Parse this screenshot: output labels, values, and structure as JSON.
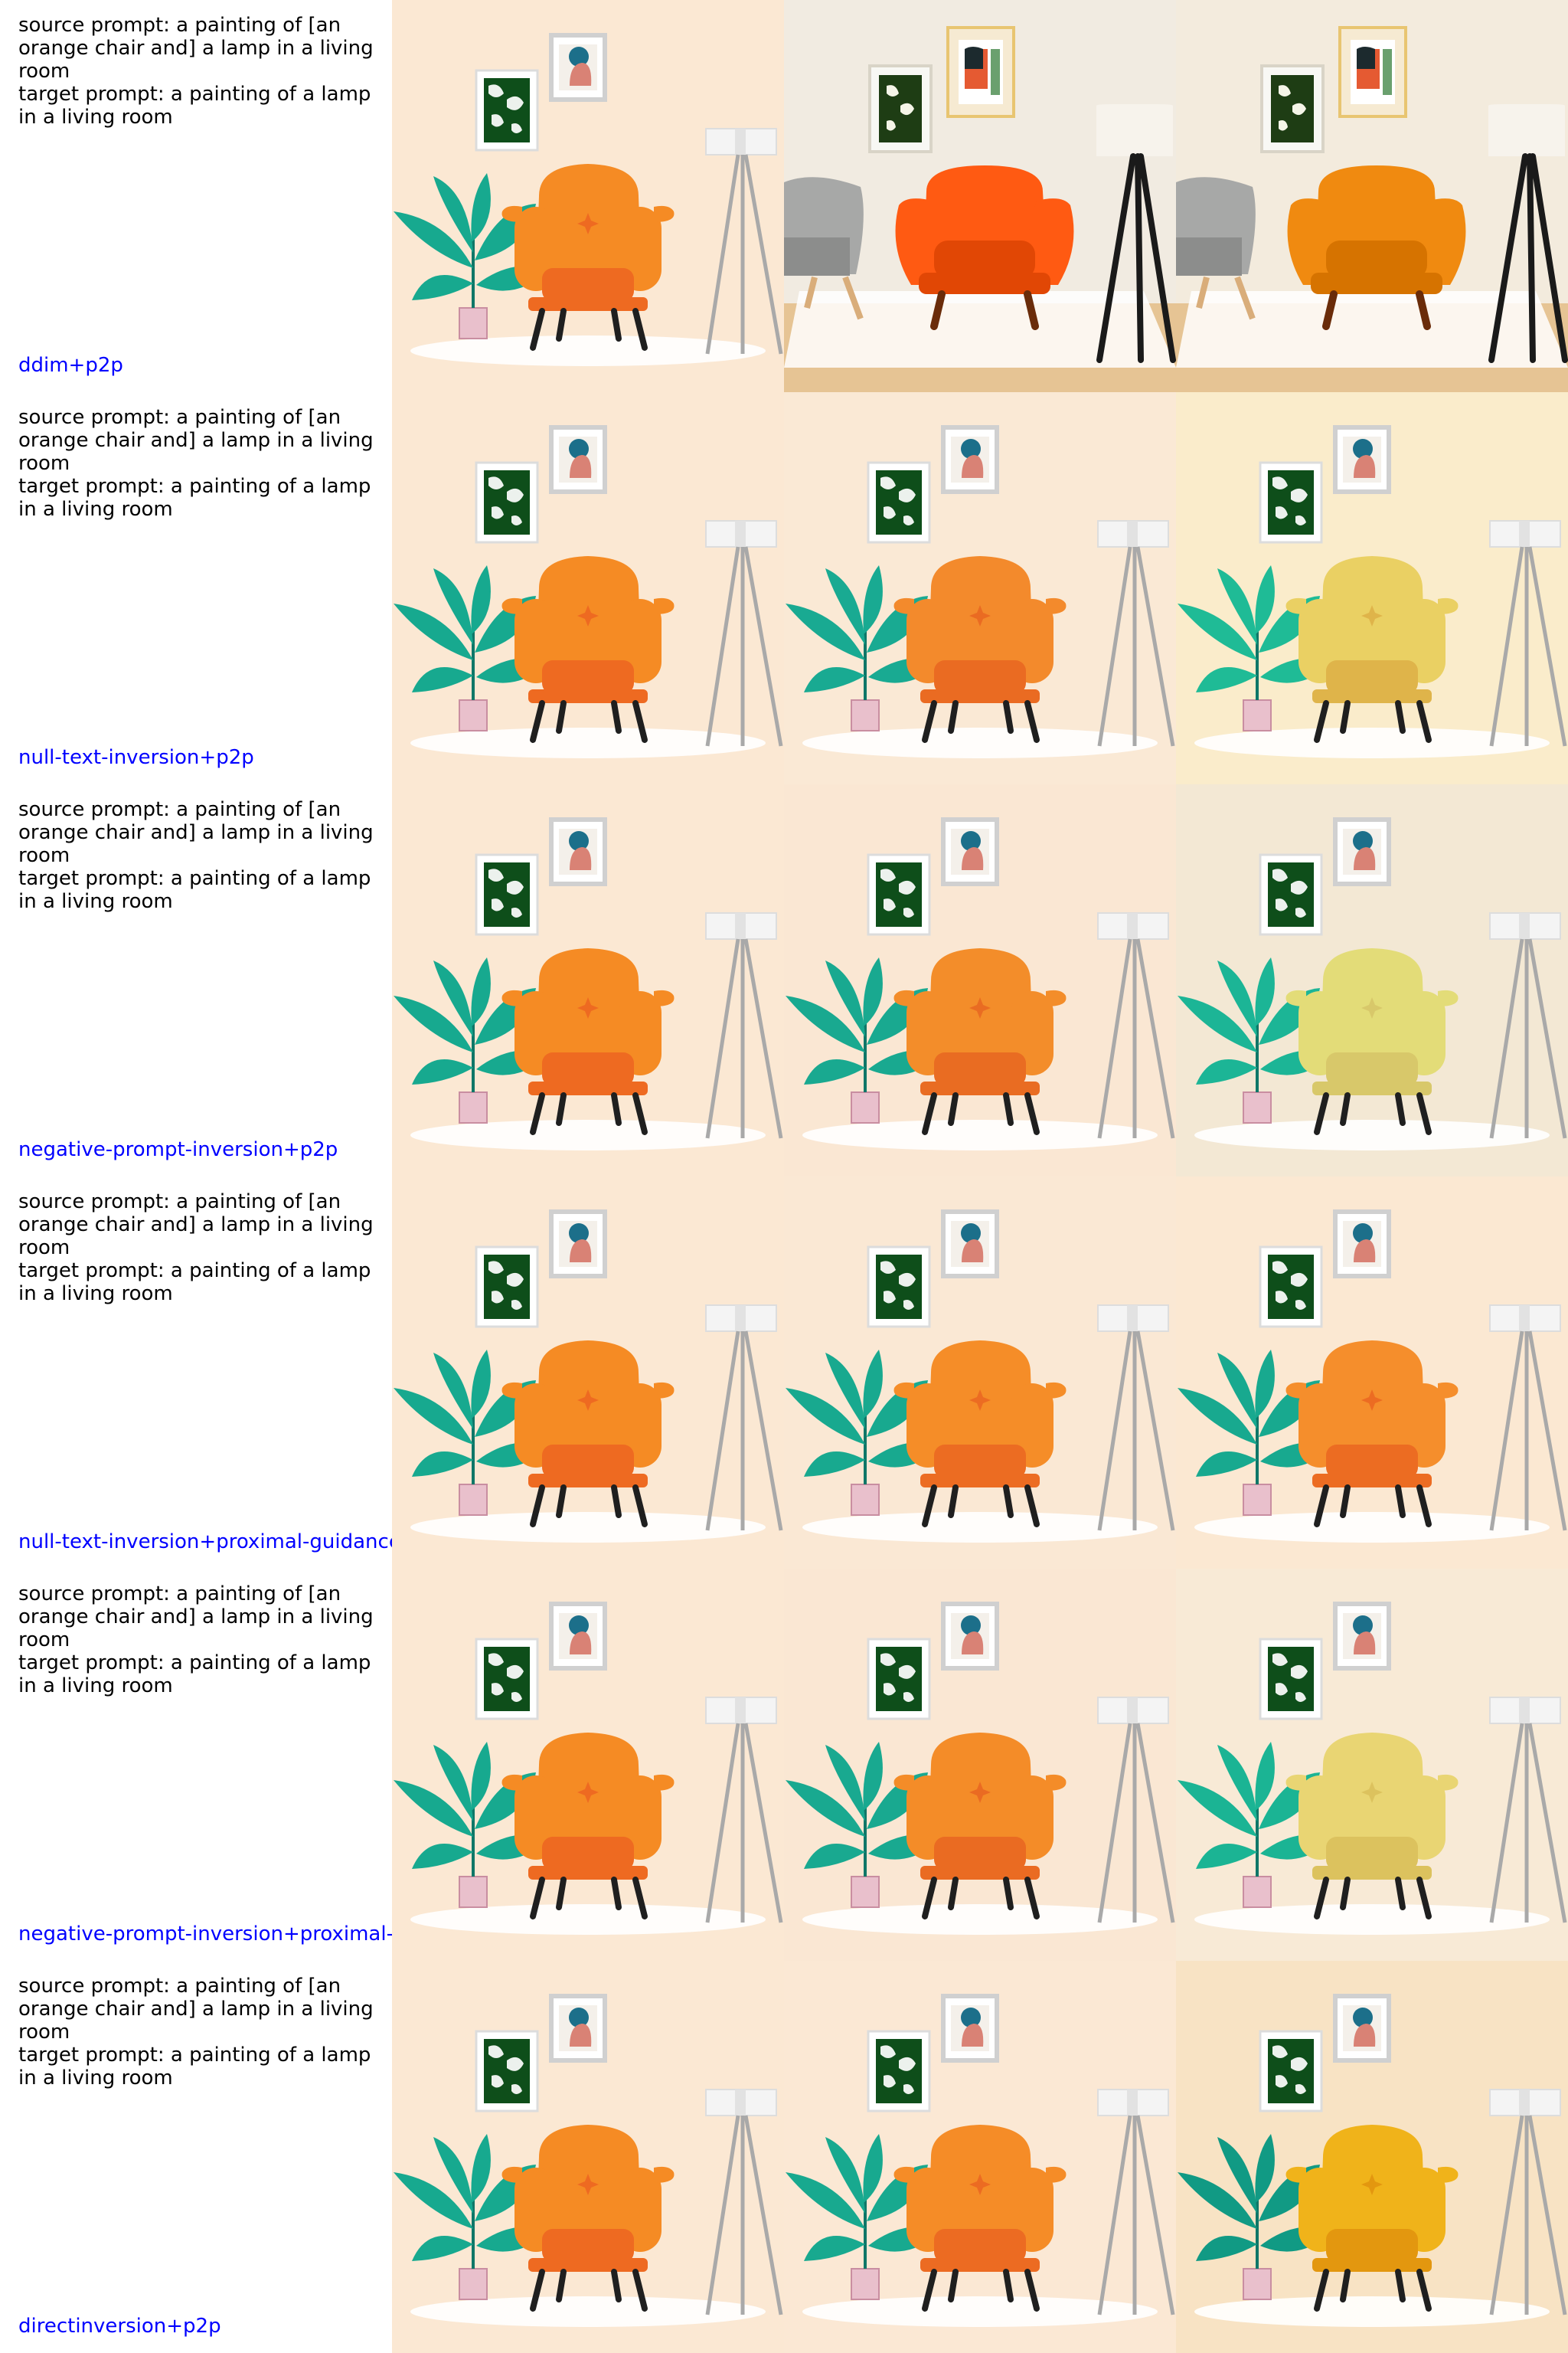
{
  "figure": {
    "method_label_color": "#0000ff",
    "rows": [
      {
        "source_prompt": "source prompt: a painting of [an orange chair and] a lamp in a living room",
        "target_prompt": "target prompt: a painting of a lamp in a living room",
        "method": "ddim+p2p",
        "panels": [
          {
            "style": "illustration",
            "bg": "#fbe8d3",
            "chair": "#f58b24",
            "chair_dark": "#ee6a21",
            "plant": "#17a98f"
          },
          {
            "style": "photo",
            "bg": "#f1ebe1",
            "chair": "#ff5a12",
            "chair_dark": "#e14705",
            "plant": "#17a98f"
          },
          {
            "style": "photo",
            "bg": "#f3ebdd",
            "chair": "#f08a10",
            "chair_dark": "#d67300",
            "plant": "#17a98f"
          }
        ]
      },
      {
        "source_prompt": "source prompt: a painting of [an orange chair and] a lamp in a living room",
        "target_prompt": "target prompt: a painting of a lamp in a living room",
        "method": "null-text-inversion+p2p",
        "panels": [
          {
            "style": "illustration",
            "bg": "#fbe8d3",
            "chair": "#f58b24",
            "chair_dark": "#ee6a21",
            "plant": "#17a98f"
          },
          {
            "style": "illustration",
            "bg": "#fae9d5",
            "chair": "#f38a2c",
            "chair_dark": "#ea6b22",
            "plant": "#19aa92"
          },
          {
            "style": "illustration",
            "bg": "#faeccb",
            "chair": "#ead063",
            "chair_dark": "#dfb44a",
            "plant": "#1fbb96"
          }
        ]
      },
      {
        "source_prompt": "source prompt: a painting of [an orange chair and] a lamp in a living room",
        "target_prompt": "target prompt: a painting of a lamp in a living room",
        "method": "negative-prompt-inversion+p2p",
        "panels": [
          {
            "style": "illustration",
            "bg": "#fbe8d3",
            "chair": "#f58b24",
            "chair_dark": "#ee6a21",
            "plant": "#17a98f"
          },
          {
            "style": "illustration",
            "bg": "#fae7d3",
            "chair": "#f38d2a",
            "chair_dark": "#e96c22",
            "plant": "#19a990"
          },
          {
            "style": "illustration",
            "bg": "#f3e8d4",
            "chair": "#e3dc78",
            "chair_dark": "#d8c86a",
            "plant": "#1cb596"
          }
        ]
      },
      {
        "source_prompt": "source prompt: a painting of [an orange chair and] a lamp in a living room",
        "target_prompt": "target prompt: a painting of a lamp in a living room",
        "method": "null-text-inversion+proximal-guidance",
        "panels": [
          {
            "style": "illustration",
            "bg": "#fbe8d3",
            "chair": "#f58b24",
            "chair_dark": "#ee6a21",
            "plant": "#17a98f"
          },
          {
            "style": "illustration",
            "bg": "#fae8d4",
            "chair": "#f58d28",
            "chair_dark": "#ec6c22",
            "plant": "#18a98f"
          },
          {
            "style": "illustration",
            "bg": "#fbe8d2",
            "chair": "#f58e2c",
            "chair_dark": "#ec6c22",
            "plant": "#18a98f"
          }
        ]
      },
      {
        "source_prompt": "source prompt: a painting of [an orange chair and] a lamp in a living room",
        "target_prompt": "target prompt: a painting of a lamp in a living room",
        "method": "negative-prompt-inversion+proximal-g",
        "panels": [
          {
            "style": "illustration",
            "bg": "#fbe8d3",
            "chair": "#f58b24",
            "chair_dark": "#ee6a21",
            "plant": "#17a98f"
          },
          {
            "style": "illustration",
            "bg": "#fae7d3",
            "chair": "#f48c28",
            "chair_dark": "#ea6b22",
            "plant": "#19a990"
          },
          {
            "style": "illustration",
            "bg": "#f8ead6",
            "chair": "#e9d573",
            "chair_dark": "#dcc25e",
            "plant": "#1bb494"
          }
        ]
      },
      {
        "source_prompt": "source prompt: a painting of [an orange chair and] a lamp in a living room",
        "target_prompt": "target prompt: a painting of a lamp in a living room",
        "method": "directinversion+p2p",
        "panels": [
          {
            "style": "illustration",
            "bg": "#fbe8d3",
            "chair": "#f58b24",
            "chair_dark": "#ee6a21",
            "plant": "#17a98f"
          },
          {
            "style": "illustration",
            "bg": "#fbe8d4",
            "chair": "#f58c27",
            "chair_dark": "#ec6b22",
            "plant": "#18a98f"
          },
          {
            "style": "illustration",
            "bg": "#f8e3c4",
            "chair": "#f0b31a",
            "chair_dark": "#e3970f",
            "plant": "#119a84"
          }
        ]
      }
    ]
  }
}
